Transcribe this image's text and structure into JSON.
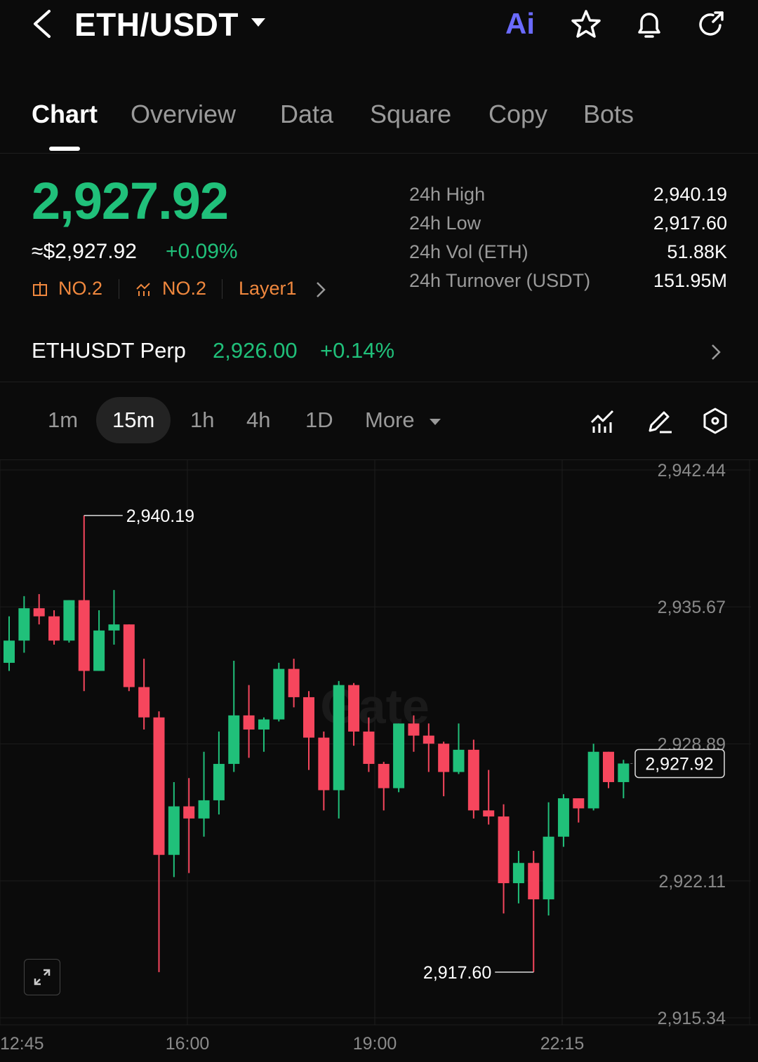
{
  "header": {
    "pair": "ETH/USDT",
    "ai_label": "Ai"
  },
  "tabs": [
    {
      "label": "Chart",
      "active": true
    },
    {
      "label": "Overview",
      "active": false
    },
    {
      "label": "Data",
      "active": false
    },
    {
      "label": "Square",
      "active": false
    },
    {
      "label": "Copy",
      "active": false
    },
    {
      "label": "Bots",
      "active": false
    }
  ],
  "ticker": {
    "last_price": "2,927.92",
    "fiat_price": "≈$2,927.92",
    "change_pct": "+0.09%",
    "tag1": "NO.2",
    "tag2": "NO.2",
    "tag3": "Layer1"
  },
  "stats": [
    {
      "label": "24h  High",
      "value": "2,940.19"
    },
    {
      "label": "24h  Low",
      "value": "2,917.60"
    },
    {
      "label": "24h  Vol (ETH)",
      "value": "51.88K"
    },
    {
      "label": "24h  Turnover (USDT)",
      "value": "151.95M"
    }
  ],
  "perp": {
    "name": "ETHUSDT Perp",
    "price": "2,926.00",
    "change": "+0.14%"
  },
  "timeframes": {
    "items": [
      "1m",
      "15m",
      "1h",
      "4h",
      "1D"
    ],
    "active": "15m",
    "more_label": "More"
  },
  "colors": {
    "up": "#20c07a",
    "down": "#f6465d",
    "accent": "#f0883e"
  },
  "chart_data": {
    "type": "candlestick",
    "interval": "15m",
    "y_ticks": [
      "2,942.44",
      "2,935.67",
      "2,928.89",
      "2,922.11",
      "2,915.34"
    ],
    "y_tick_values": [
      2942.44,
      2935.67,
      2928.89,
      2922.11,
      2915.34
    ],
    "x_ticks": [
      "12:45",
      "16:00",
      "19:00",
      "22:15"
    ],
    "high_label": "2,940.19",
    "low_label": "2,917.60",
    "last_label": "2,927.92",
    "last_value": 2927.92,
    "watermark": "Gate",
    "candles": [
      {
        "o": 2932.9,
        "h": 2935.2,
        "l": 2932.5,
        "c": 2934.0
      },
      {
        "o": 2934.0,
        "h": 2936.2,
        "l": 2933.4,
        "c": 2935.6
      },
      {
        "o": 2935.6,
        "h": 2936.3,
        "l": 2934.8,
        "c": 2935.2
      },
      {
        "o": 2935.2,
        "h": 2935.5,
        "l": 2933.8,
        "c": 2934.0
      },
      {
        "o": 2934.0,
        "h": 2936.0,
        "l": 2933.9,
        "c": 2936.0
      },
      {
        "o": 2936.0,
        "h": 2940.19,
        "l": 2931.5,
        "c": 2932.5
      },
      {
        "o": 2932.5,
        "h": 2935.5,
        "l": 2932.5,
        "c": 2934.5
      },
      {
        "o": 2934.5,
        "h": 2936.5,
        "l": 2933.8,
        "c": 2934.8
      },
      {
        "o": 2934.8,
        "h": 2934.8,
        "l": 2931.5,
        "c": 2931.7
      },
      {
        "o": 2931.7,
        "h": 2933.1,
        "l": 2929.6,
        "c": 2930.2
      },
      {
        "o": 2930.2,
        "h": 2930.5,
        "l": 2917.6,
        "c": 2923.4
      },
      {
        "o": 2923.4,
        "h": 2927.0,
        "l": 2922.3,
        "c": 2925.8
      },
      {
        "o": 2925.8,
        "h": 2927.2,
        "l": 2922.5,
        "c": 2925.2
      },
      {
        "o": 2925.2,
        "h": 2928.5,
        "l": 2924.3,
        "c": 2926.1
      },
      {
        "o": 2926.1,
        "h": 2929.5,
        "l": 2925.4,
        "c": 2927.9
      },
      {
        "o": 2927.9,
        "h": 2933.0,
        "l": 2927.5,
        "c": 2930.3
      },
      {
        "o": 2930.3,
        "h": 2931.8,
        "l": 2928.2,
        "c": 2929.6
      },
      {
        "o": 2929.6,
        "h": 2930.2,
        "l": 2928.5,
        "c": 2930.1
      },
      {
        "o": 2930.1,
        "h": 2932.9,
        "l": 2930.0,
        "c": 2932.6
      },
      {
        "o": 2932.6,
        "h": 2933.1,
        "l": 2930.7,
        "c": 2931.2
      },
      {
        "o": 2931.2,
        "h": 2931.5,
        "l": 2927.6,
        "c": 2929.2
      },
      {
        "o": 2929.2,
        "h": 2929.5,
        "l": 2925.6,
        "c": 2926.6
      },
      {
        "o": 2926.6,
        "h": 2932.0,
        "l": 2925.2,
        "c": 2931.8
      },
      {
        "o": 2931.8,
        "h": 2931.9,
        "l": 2928.8,
        "c": 2929.5
      },
      {
        "o": 2929.5,
        "h": 2930.2,
        "l": 2927.5,
        "c": 2927.9
      },
      {
        "o": 2927.9,
        "h": 2928.0,
        "l": 2925.6,
        "c": 2926.7
      },
      {
        "o": 2926.7,
        "h": 2929.9,
        "l": 2926.5,
        "c": 2929.9
      },
      {
        "o": 2929.9,
        "h": 2930.3,
        "l": 2928.5,
        "c": 2929.3
      },
      {
        "o": 2929.3,
        "h": 2929.9,
        "l": 2927.5,
        "c": 2928.9
      },
      {
        "o": 2928.9,
        "h": 2929.0,
        "l": 2926.3,
        "c": 2927.5
      },
      {
        "o": 2927.5,
        "h": 2929.9,
        "l": 2927.4,
        "c": 2928.6
      },
      {
        "o": 2928.6,
        "h": 2929.1,
        "l": 2925.2,
        "c": 2925.6
      },
      {
        "o": 2925.6,
        "h": 2927.6,
        "l": 2924.9,
        "c": 2925.3
      },
      {
        "o": 2925.3,
        "h": 2925.9,
        "l": 2920.5,
        "c": 2922.0
      },
      {
        "o": 2922.0,
        "h": 2923.6,
        "l": 2921.0,
        "c": 2923.0
      },
      {
        "o": 2923.0,
        "h": 2923.6,
        "l": 2917.6,
        "c": 2921.2
      },
      {
        "o": 2921.2,
        "h": 2926.0,
        "l": 2920.4,
        "c": 2924.3
      },
      {
        "o": 2924.3,
        "h": 2926.4,
        "l": 2923.8,
        "c": 2926.2
      },
      {
        "o": 2926.2,
        "h": 2926.2,
        "l": 2925.0,
        "c": 2925.7
      },
      {
        "o": 2925.7,
        "h": 2928.9,
        "l": 2925.6,
        "c": 2928.5
      },
      {
        "o": 2928.5,
        "h": 2928.5,
        "l": 2926.7,
        "c": 2927.0
      },
      {
        "o": 2927.0,
        "h": 2928.1,
        "l": 2926.2,
        "c": 2927.92
      }
    ]
  }
}
